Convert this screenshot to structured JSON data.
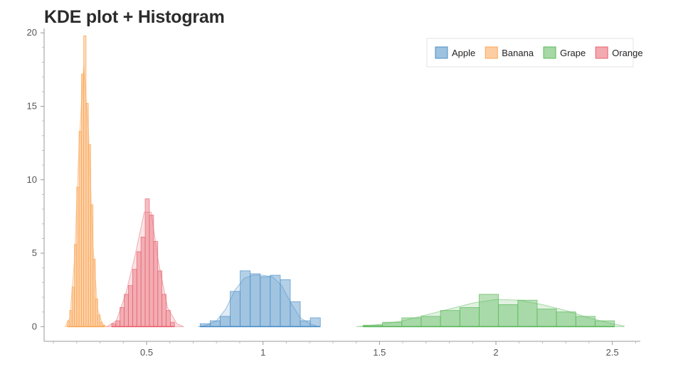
{
  "chart_data": {
    "type": "bar",
    "title": "KDE plot + Histogram",
    "xlabel": "",
    "ylabel": "",
    "xlim": [
      0.06,
      2.62
    ],
    "ylim": [
      -1,
      20.3
    ],
    "xticks": [
      0.5,
      1,
      1.5,
      2,
      2.5
    ],
    "xtick_labels": [
      "0.5",
      "1",
      "1.5",
      "2",
      "2.5"
    ],
    "yticks": [
      0,
      5,
      10,
      15,
      20
    ],
    "ytick_labels": [
      "0",
      "5",
      "10",
      "15",
      "20"
    ],
    "grid": false,
    "legend_position": "top-right",
    "series": [
      {
        "name": "Apple",
        "color": "#4c8fc6",
        "bin_edges": [
          0.73,
          0.773,
          0.816,
          0.859,
          0.902,
          0.945,
          0.988,
          1.031,
          1.074,
          1.117,
          1.16,
          1.203,
          1.246
        ],
        "counts": [
          0.2,
          0.4,
          0.7,
          2.4,
          3.8,
          3.6,
          3.4,
          3.5,
          3.2,
          1.7,
          0.4,
          0.6
        ],
        "kde": {
          "x": [
            0.72,
            0.76,
            0.8,
            0.84,
            0.88,
            0.92,
            0.96,
            1.0,
            1.04,
            1.08,
            1.12,
            1.16,
            1.2,
            1.24
          ],
          "y": [
            0.0,
            0.1,
            0.4,
            1.2,
            2.5,
            3.3,
            3.5,
            3.5,
            3.4,
            2.8,
            1.6,
            0.6,
            0.2,
            0.0
          ]
        }
      },
      {
        "name": "Banana",
        "color": "#fba656",
        "bin_edges": [
          0.16,
          0.17,
          0.18,
          0.19,
          0.2,
          0.21,
          0.22,
          0.23,
          0.24,
          0.25,
          0.26,
          0.27,
          0.28,
          0.29,
          0.3,
          0.31,
          0.32
        ],
        "counts": [
          0.4,
          1.1,
          2.7,
          5.6,
          9.5,
          13.3,
          17.2,
          19.8,
          15.2,
          12.4,
          8.3,
          4.6,
          1.9,
          0.8,
          0.3,
          0.1
        ],
        "kde": {
          "x": [
            0.15,
            0.17,
            0.19,
            0.21,
            0.23,
            0.25,
            0.27,
            0.29,
            0.31,
            0.33
          ],
          "y": [
            0.0,
            0.6,
            4.5,
            12.5,
            17.8,
            13.5,
            5.5,
            1.2,
            0.2,
            0.0
          ]
        }
      },
      {
        "name": "Grape",
        "color": "#5bb85b",
        "bin_edges": [
          1.43,
          1.513,
          1.596,
          1.679,
          1.762,
          1.845,
          1.928,
          2.011,
          2.094,
          2.177,
          2.26,
          2.343,
          2.426,
          2.509
        ],
        "counts": [
          0.1,
          0.3,
          0.6,
          0.7,
          1.1,
          1.3,
          2.2,
          1.5,
          1.8,
          1.2,
          1.0,
          0.7,
          0.4
        ],
        "kde": {
          "x": [
            1.4,
            1.5,
            1.6,
            1.7,
            1.8,
            1.9,
            2.0,
            2.1,
            2.2,
            2.3,
            2.4,
            2.5,
            2.55
          ],
          "y": [
            0.0,
            0.15,
            0.4,
            0.8,
            1.2,
            1.6,
            1.85,
            1.8,
            1.5,
            1.1,
            0.6,
            0.2,
            0.05
          ]
        }
      },
      {
        "name": "Orange",
        "color": "#e8636f",
        "bin_edges": [
          0.35,
          0.368,
          0.386,
          0.404,
          0.422,
          0.44,
          0.458,
          0.476,
          0.494,
          0.512,
          0.53,
          0.548,
          0.566,
          0.584,
          0.602,
          0.62
        ],
        "counts": [
          0.2,
          0.4,
          1.3,
          2.2,
          2.8,
          3.9,
          5.1,
          6.1,
          8.7,
          7.6,
          5.8,
          3.8,
          2.2,
          1.1,
          0.3
        ],
        "kde": {
          "x": [
            0.33,
            0.37,
            0.41,
            0.45,
            0.49,
            0.52,
            0.55,
            0.59,
            0.63,
            0.66
          ],
          "y": [
            0.0,
            0.4,
            2.2,
            4.8,
            7.8,
            7.8,
            4.5,
            1.3,
            0.2,
            0.0
          ]
        }
      }
    ]
  }
}
